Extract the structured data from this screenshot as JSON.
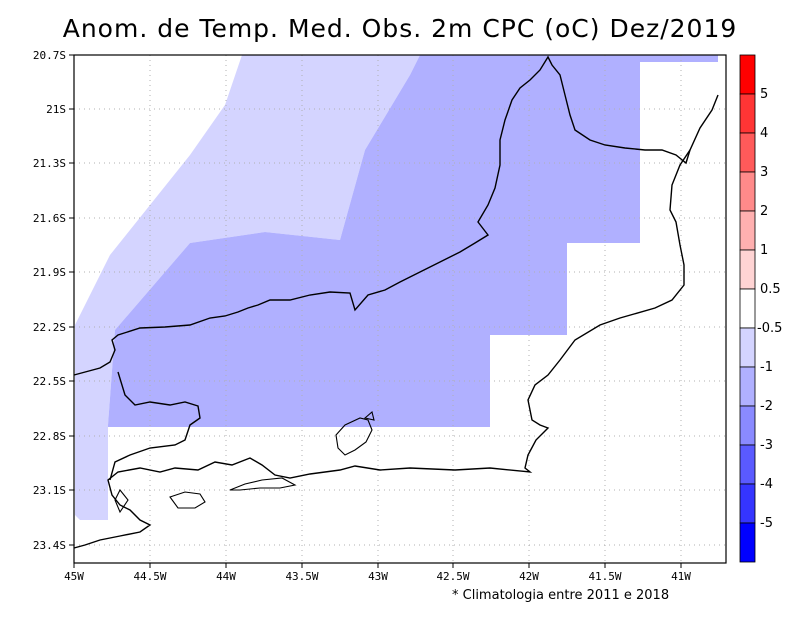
{
  "title": "Anom. de Temp. Med. Obs. 2m CPC (oC) Dez/2019",
  "footnote": "* Climatologia entre 2011 e 2018",
  "axes": {
    "lon_ticks": [
      "45W",
      "44.5W",
      "44W",
      "43.5W",
      "43W",
      "42.5W",
      "42W",
      "41.5W",
      "41W"
    ],
    "lat_ticks": [
      "20.7S",
      "21S",
      "21.3S",
      "21.6S",
      "21.9S",
      "22.2S",
      "22.5S",
      "22.8S",
      "23.1S",
      "23.4S"
    ]
  },
  "colorbar": {
    "labels": [
      "5",
      "4",
      "3",
      "2",
      "1",
      "0.5",
      "-0.5",
      "-1",
      "-2",
      "-3",
      "-4",
      "-5"
    ],
    "colors": [
      "#ff0000",
      "#ff3535",
      "#ff5a5a",
      "#ff8a8a",
      "#ffb0b0",
      "#ffd4d4",
      "#ffffff",
      "#d4d4ff",
      "#b0b0ff",
      "#8a8aff",
      "#5a5aff",
      "#3535ff",
      "#0000ff"
    ]
  },
  "chart_data": {
    "type": "heatmap",
    "title": "Anom. de Temp. Med. Obs. 2m CPC (oC) Dez/2019",
    "xlabel": "",
    "ylabel": "",
    "xlim": [
      "45W",
      "40.75W"
    ],
    "ylim": [
      "20.7S",
      "23.45S"
    ],
    "grid": true,
    "regions": [
      {
        "anomaly_range": "-1 to -0.5",
        "color": "#d4d4ff",
        "area": "western band"
      },
      {
        "anomaly_range": "-2 to -1",
        "color": "#b0b0ff",
        "area": "central and northern interior"
      },
      {
        "anomaly_range": "-0.5 to 0.5",
        "color": "#ffffff",
        "area": "eastern coast and south"
      }
    ]
  }
}
